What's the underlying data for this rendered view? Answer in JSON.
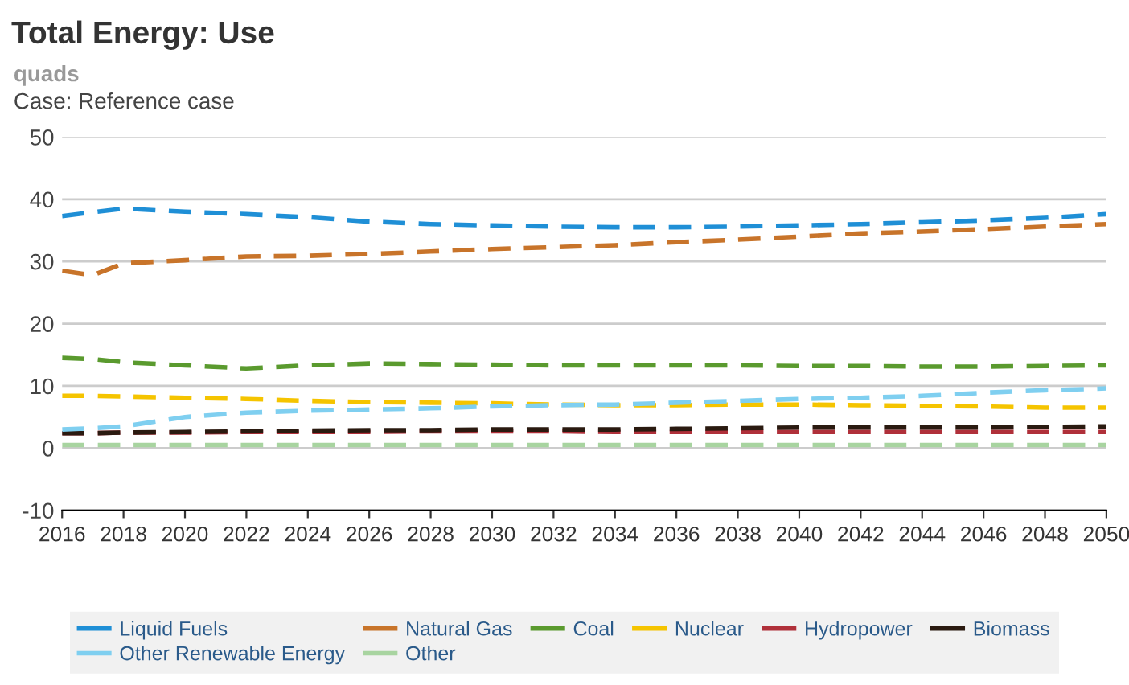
{
  "chart_data": {
    "type": "line",
    "title": "Total Energy: Use",
    "ylabel": "quads",
    "annotations": [
      "Case: Reference case"
    ],
    "x": [
      2016,
      2017,
      2018,
      2020,
      2022,
      2024,
      2026,
      2028,
      2030,
      2032,
      2034,
      2036,
      2038,
      2040,
      2042,
      2044,
      2046,
      2048,
      2050
    ],
    "series": [
      {
        "name": "Liquid Fuels",
        "color": "#1f8fd6",
        "values": [
          37.3,
          37.9,
          38.5,
          38.0,
          37.6,
          37.1,
          36.4,
          36.0,
          35.8,
          35.6,
          35.5,
          35.5,
          35.6,
          35.8,
          36.0,
          36.3,
          36.6,
          37.0,
          37.6
        ]
      },
      {
        "name": "Natural Gas",
        "color": "#c8742a",
        "values": [
          28.5,
          27.8,
          29.7,
          30.2,
          30.8,
          30.9,
          31.2,
          31.6,
          32.0,
          32.3,
          32.6,
          33.1,
          33.5,
          34.0,
          34.5,
          34.8,
          35.2,
          35.6,
          36.0
        ]
      },
      {
        "name": "Coal",
        "color": "#5a9a2e",
        "values": [
          14.5,
          14.3,
          13.8,
          13.3,
          12.8,
          13.3,
          13.6,
          13.5,
          13.4,
          13.3,
          13.3,
          13.3,
          13.3,
          13.2,
          13.2,
          13.1,
          13.1,
          13.2,
          13.3
        ]
      },
      {
        "name": "Nuclear",
        "color": "#f5c400",
        "values": [
          8.4,
          8.4,
          8.3,
          8.1,
          7.9,
          7.6,
          7.4,
          7.3,
          7.2,
          7.0,
          6.9,
          6.9,
          7.0,
          7.0,
          6.9,
          6.8,
          6.7,
          6.5,
          6.5
        ]
      },
      {
        "name": "Hydropower",
        "color": "#b0303a",
        "values": [
          2.4,
          2.4,
          2.5,
          2.5,
          2.6,
          2.6,
          2.6,
          2.7,
          2.7,
          2.7,
          2.6,
          2.6,
          2.6,
          2.6,
          2.6,
          2.6,
          2.6,
          2.6,
          2.6
        ]
      },
      {
        "name": "Biomass",
        "color": "#2a1a10",
        "values": [
          2.4,
          2.4,
          2.5,
          2.6,
          2.7,
          2.8,
          2.9,
          2.9,
          3.0,
          3.0,
          3.0,
          3.1,
          3.2,
          3.3,
          3.3,
          3.3,
          3.3,
          3.4,
          3.5
        ]
      },
      {
        "name": "Other Renewable Energy",
        "color": "#7fcff0",
        "values": [
          3.0,
          3.2,
          3.5,
          5.0,
          5.7,
          6.0,
          6.2,
          6.4,
          6.7,
          6.9,
          7.0,
          7.3,
          7.6,
          7.9,
          8.1,
          8.4,
          8.9,
          9.3,
          9.6
        ]
      },
      {
        "name": "Other",
        "color": "#a8d4a0",
        "values": [
          0.5,
          0.5,
          0.5,
          0.5,
          0.5,
          0.5,
          0.5,
          0.5,
          0.5,
          0.5,
          0.5,
          0.5,
          0.5,
          0.5,
          0.5,
          0.5,
          0.5,
          0.5,
          0.5
        ]
      }
    ],
    "xlim": [
      2016,
      2050
    ],
    "xticks": [
      2016,
      2018,
      2020,
      2022,
      2024,
      2026,
      2028,
      2030,
      2032,
      2034,
      2036,
      2038,
      2040,
      2042,
      2044,
      2046,
      2048,
      2050
    ],
    "ylim": [
      -10,
      50
    ],
    "yticks": [
      -10,
      0,
      10,
      20,
      30,
      40,
      50
    ],
    "grid": "y",
    "legend": "bottom",
    "line_style": "dashed"
  }
}
